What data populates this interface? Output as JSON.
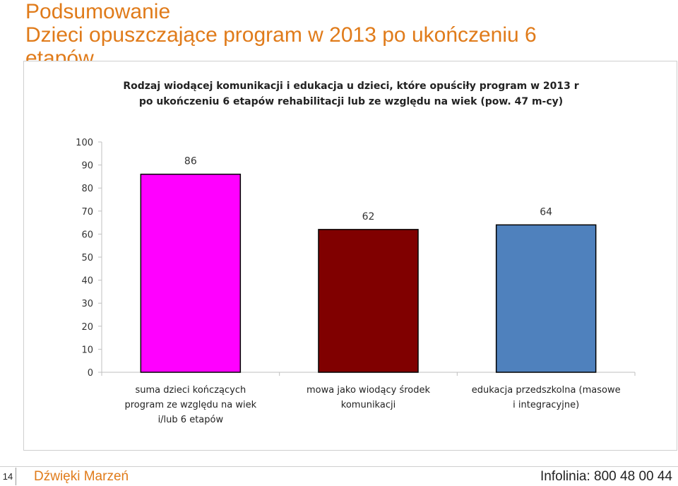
{
  "slide": {
    "title_line1": "Podsumowanie",
    "title_line2": "Dzieci opuszczające program w 2013 po ukończeniu 6",
    "title_line3": "etapów"
  },
  "footer": {
    "page_number": "14",
    "left_text": "Dźwięki Marzeń",
    "right_text": "Infolinia: 800 48 00 44"
  },
  "chart_data": {
    "type": "bar",
    "title": "Rodzaj wiodącej komunikacji i edukacja u dzieci, które opuściły program w 2013 r po ukończeniu 6 etapów rehabilitacji lub ze względu na wiek (pow. 47 m-cy)",
    "title_lines": [
      "Rodzaj wiodącej komunikacji i edukacja u dzieci, które opuściły program w 2013 r",
      "po ukończeniu 6 etapów rehabilitacji lub ze względu na wiek (pow. 47 m-cy)"
    ],
    "categories": [
      [
        "suma dzieci kończących",
        "program ze względu na wiek",
        "i/lub 6 etapów"
      ],
      [
        "mowa jako wiodący środek",
        "komunikacji"
      ],
      [
        "edukacja przedszkolna (masowe",
        "i integracyjne)"
      ]
    ],
    "values": [
      86,
      62,
      64
    ],
    "colors": [
      "#ff00ff",
      "#800000",
      "#4f81bd"
    ],
    "ylim": [
      0,
      100
    ],
    "yticks": [
      0,
      10,
      20,
      30,
      40,
      50,
      60,
      70,
      80,
      90,
      100
    ],
    "grid": false,
    "legend": "none",
    "xlabel": "",
    "ylabel": ""
  }
}
